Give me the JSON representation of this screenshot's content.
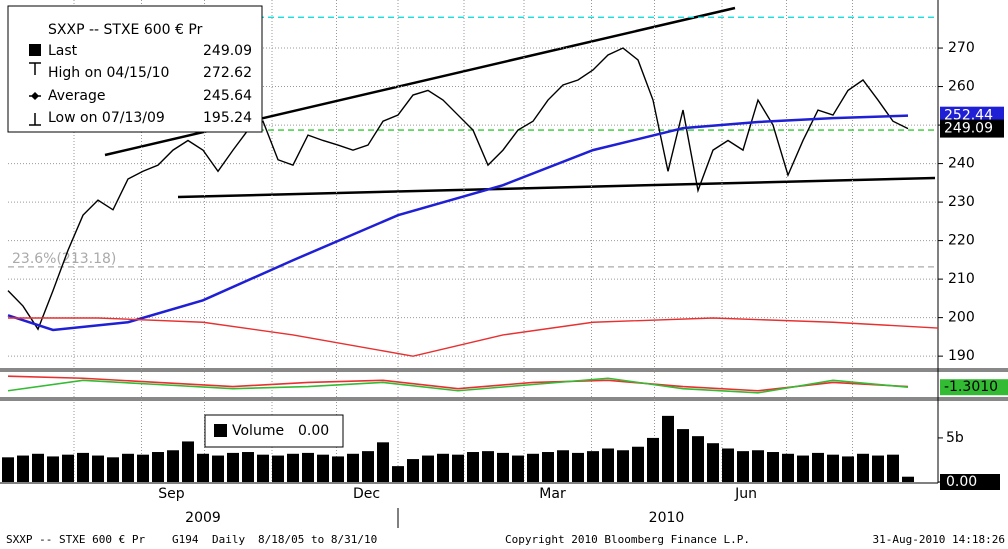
{
  "chart_data": {
    "type": "line",
    "title": "SXXP -- STXE 600 € Pr",
    "legend": [
      {
        "label": "Last",
        "value": 249.09
      },
      {
        "label": "High on 04/15/10",
        "value": 272.62
      },
      {
        "label": "Average",
        "value": 245.64
      },
      {
        "label": "Low on 07/13/09",
        "value": 195.24
      }
    ],
    "xlim": [
      0,
      62
    ],
    "xticks": [
      {
        "value": 10.9,
        "label": "Sep"
      },
      {
        "value": 23.9,
        "label": "Dec"
      },
      {
        "value": 36.3,
        "label": "Mar"
      },
      {
        "value": 49.2,
        "label": "Jun"
      }
    ],
    "years": [
      {
        "value": 13,
        "label": "2009"
      },
      {
        "value": 43.9,
        "label": "2010"
      }
    ],
    "year_break": 26,
    "xgrid": [
      4.4,
      8.9,
      13.1,
      17.6,
      21.9,
      26,
      30.4,
      34.4,
      38.9,
      43.1,
      47.6,
      51.9,
      56.3
    ],
    "ylim": [
      186.4,
      280.4
    ],
    "yticks": [
      190,
      200,
      210,
      220,
      230,
      240,
      250,
      260,
      270
    ],
    "grid": true,
    "series": [
      {
        "color": "#000000",
        "values": [
          207,
          203,
          197,
          207,
          217.5,
          226.6,
          230.5,
          228,
          236,
          238,
          239.6,
          243.5,
          246,
          243.5,
          238,
          243.5,
          248.7,
          251,
          241,
          239.6,
          247.4,
          246,
          244.8,
          243.5,
          244.8,
          251,
          252.6,
          257.8,
          259,
          256.5,
          252.6,
          248.7,
          239.6,
          243.5,
          248.7,
          251,
          256.5,
          260.4,
          261.7,
          264.3,
          268.2,
          270,
          266.9,
          256.5,
          238,
          253.9,
          233,
          243.5,
          246,
          243.5,
          256.5,
          250,
          237,
          246,
          253.9,
          252.6,
          259,
          261.7,
          256.5,
          251,
          249.09
        ]
      },
      {
        "color": "#1f1fd6",
        "x": [
          0,
          3,
          8,
          13,
          19,
          26,
          33,
          39,
          45,
          50,
          55,
          60
        ],
        "values": [
          200.6,
          196.8,
          198.8,
          204.5,
          214.9,
          226.6,
          234.4,
          243.5,
          249.2,
          250.8,
          251.8,
          252.44
        ]
      },
      {
        "color": "#e83030",
        "x": [
          0,
          6,
          13,
          19,
          27,
          33,
          39,
          47,
          55,
          62
        ],
        "values": [
          199.9,
          199.9,
          198.8,
          195.5,
          190,
          195.5,
          198.8,
          199.9,
          198.8,
          197.3
        ]
      }
    ],
    "levels": [
      {
        "value": 278,
        "color": "#00d8d8"
      },
      {
        "value": 248.7,
        "color": "#33cc33"
      },
      {
        "value": 213.18,
        "color": "#aaaaaa",
        "label": "23.6%(213.18)"
      }
    ],
    "last_labels": [
      {
        "value": 252.44,
        "color": "#1f1fd6"
      },
      {
        "value": 249.09,
        "color": "#000000"
      }
    ],
    "oscillator": {
      "ylim": [
        -6,
        6
      ],
      "x": [
        0,
        5,
        10,
        15,
        20,
        25,
        30,
        35,
        40,
        45,
        50,
        55,
        60
      ],
      "series": [
        {
          "color": "#e83030",
          "values": [
            4,
            3,
            1,
            -1,
            1,
            2,
            -2,
            1,
            2,
            -1,
            -3,
            1,
            -1
          ]
        },
        {
          "color": "#33bb33",
          "values": [
            -3,
            2,
            0,
            -2,
            -1,
            1,
            -3,
            0,
            3,
            -2,
            -4,
            2,
            -1.301
          ]
        }
      ],
      "last": {
        "value": -1.301,
        "label": "-1.3010"
      }
    },
    "volume": {
      "legend_label": "Volume",
      "legend_value": {
        "value": 0,
        "label": "0.00"
      },
      "ylim": [
        0,
        9.3
      ],
      "yticks": [
        {
          "value": 5,
          "label": "5b"
        },
        {
          "value": 0,
          "label": "0.00"
        }
      ],
      "color": "#000000",
      "values": [
        2.8,
        3.0,
        3.2,
        2.9,
        3.1,
        3.3,
        3.0,
        2.8,
        3.2,
        3.1,
        3.4,
        3.6,
        4.6,
        3.2,
        3.0,
        3.3,
        3.4,
        3.1,
        3.0,
        3.2,
        3.3,
        3.1,
        2.9,
        3.2,
        3.5,
        4.5,
        1.8,
        2.6,
        3.0,
        3.2,
        3.1,
        3.4,
        3.5,
        3.3,
        3.0,
        3.2,
        3.4,
        3.6,
        3.3,
        3.5,
        3.8,
        3.6,
        4.0,
        5.0,
        7.5,
        6.0,
        5.2,
        4.4,
        3.8,
        3.5,
        3.6,
        3.4,
        3.2,
        3.0,
        3.3,
        3.1,
        2.9,
        3.2,
        3.0,
        3.1,
        0.6
      ]
    },
    "footer": {
      "left": "SXXP -- STXE 600 € Pr",
      "code": "G194",
      "period": "Daily",
      "range": "8/18/05 to 8/31/10",
      "copyright": "Copyright 2010 Bloomberg Finance L.P.",
      "timestamp": "31-Aug-2010 14:18:26"
    }
  }
}
